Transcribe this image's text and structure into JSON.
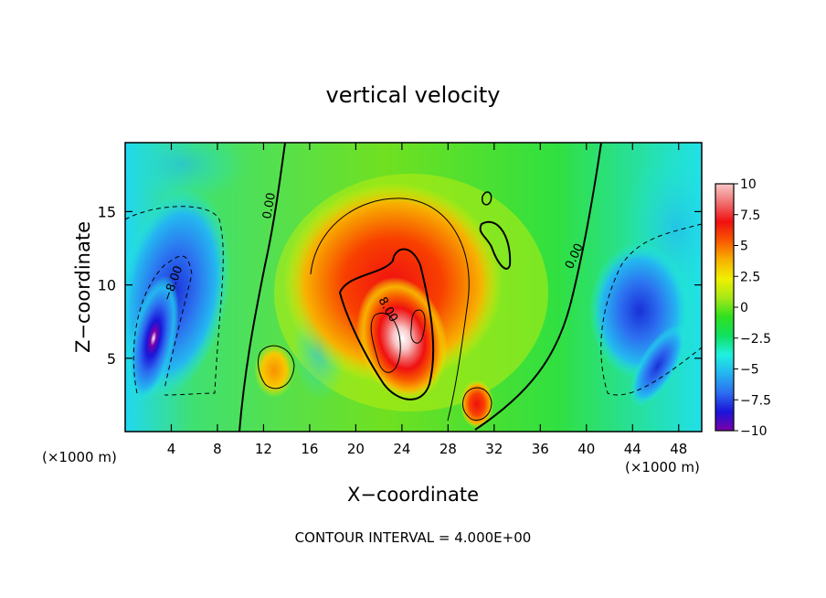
{
  "chart_data": {
    "type": "heatmap",
    "title": "vertical velocity",
    "xlabel": "X−coordinate",
    "ylabel": "Z−coordinate",
    "x_unit": "(×1000 m)",
    "xlim": [
      0,
      50
    ],
    "ylim": [
      0,
      19.7
    ],
    "x_ticks": [
      "4",
      "8",
      "12",
      "16",
      "20",
      "24",
      "28",
      "32",
      "36",
      "40",
      "44",
      "48"
    ],
    "y_ticks": [
      "5",
      "10",
      "15"
    ],
    "colorbar": {
      "range": [
        -10,
        10
      ],
      "ticks": [
        "10",
        "7.5",
        "5",
        "2.5",
        "0",
        "−2.5",
        "−5",
        "−7.5",
        "−10"
      ],
      "colors": [
        "#7a00a8",
        "#1a14d8",
        "#2c6ef0",
        "#24b4f0",
        "#20f0e0",
        "#10e060",
        "#30e020",
        "#a8e818",
        "#f0f000",
        "#f8b000",
        "#f85800",
        "#f01010",
        "#f07070",
        "#f8c8c8"
      ]
    },
    "contour_labels": [
      "0.00",
      "0.00",
      "−8.00",
      "8.00"
    ],
    "footer": "CONTOUR INTERVAL = 4.000E+00",
    "features": [
      {
        "x": 24.0,
        "z": 8.0,
        "w": 10.0,
        "label": "updraft core"
      },
      {
        "x": 22.0,
        "z": 11.5,
        "w": 8.5,
        "label": "upper updraft"
      },
      {
        "x": 3.0,
        "z": 7.0,
        "w": -10.0,
        "label": "left downdraft core"
      },
      {
        "x": 45.0,
        "z": 8.5,
        "w": -7.0,
        "label": "right downdraft"
      },
      {
        "x": 30.5,
        "z": 2.0,
        "w": 7.0,
        "label": "low-level updraft"
      },
      {
        "x": 13.0,
        "z": 4.0,
        "w": 5.0,
        "label": "small updraft"
      }
    ]
  }
}
